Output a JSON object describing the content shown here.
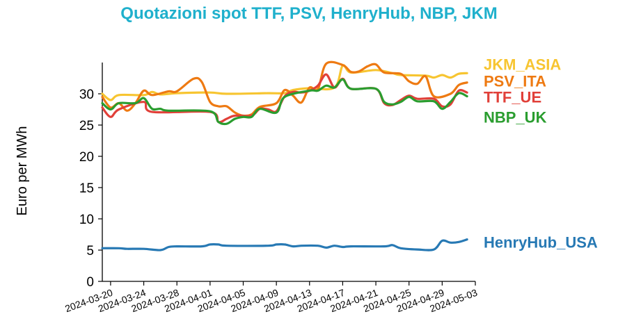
{
  "chart_data": {
    "type": "line",
    "title": "Quotazioni spot TTF, PSV, HenryHub, NBP, JKM",
    "ylabel": "Euro per MWh",
    "xlabel": "",
    "ylim": [
      0,
      35
    ],
    "yticks": [
      0,
      5,
      10,
      15,
      20,
      25,
      30
    ],
    "xlim": [
      "2024-03-19",
      "2024-05-03"
    ],
    "xticks": [
      "2024-03-20",
      "2024-03-24",
      "2024-03-28",
      "2024-04-01",
      "2024-04-05",
      "2024-04-09",
      "2024-04-13",
      "2024-04-17",
      "2024-04-21",
      "2024-04-25",
      "2024-04-29",
      "2024-05-03"
    ],
    "grid": false,
    "legend": "series labels at right end of lines",
    "series": [
      {
        "name": "JKM_ASIA",
        "color": "#f7c531",
        "points": [
          [
            "2024-03-19",
            30.0
          ],
          [
            "2024-03-20",
            29.0
          ],
          [
            "2024-03-21",
            29.8
          ],
          [
            "2024-03-24",
            29.8
          ],
          [
            "2024-03-25",
            30.3
          ],
          [
            "2024-03-26",
            29.9
          ],
          [
            "2024-03-28",
            30.1
          ],
          [
            "2024-04-01",
            30.2
          ],
          [
            "2024-04-03",
            30.0
          ],
          [
            "2024-04-08",
            30.1
          ],
          [
            "2024-04-10",
            30.1
          ],
          [
            "2024-04-11",
            30.6
          ],
          [
            "2024-04-13",
            30.9
          ],
          [
            "2024-04-16",
            31.0
          ],
          [
            "2024-04-17",
            34.5
          ],
          [
            "2024-04-18",
            33.4
          ],
          [
            "2024-04-21",
            33.8
          ],
          [
            "2024-04-23",
            33.3
          ],
          [
            "2024-04-24",
            33.0
          ],
          [
            "2024-04-27",
            32.9
          ],
          [
            "2024-04-28",
            32.6
          ],
          [
            "2024-04-29",
            33.0
          ],
          [
            "2024-04-30",
            32.6
          ],
          [
            "2024-05-01",
            33.2
          ],
          [
            "2024-05-02",
            33.3
          ]
        ]
      },
      {
        "name": "PSV_ITA",
        "color": "#ee7a12",
        "points": [
          [
            "2024-03-19",
            29.5
          ],
          [
            "2024-03-20",
            27.8
          ],
          [
            "2024-03-21",
            28.5
          ],
          [
            "2024-03-22",
            27.3
          ],
          [
            "2024-03-23",
            28.5
          ],
          [
            "2024-03-24",
            30.5
          ],
          [
            "2024-03-25",
            29.8
          ],
          [
            "2024-03-27",
            30.4
          ],
          [
            "2024-03-28",
            30.4
          ],
          [
            "2024-03-30",
            32.4
          ],
          [
            "2024-03-31",
            31.9
          ],
          [
            "2024-04-01",
            28.7
          ],
          [
            "2024-04-02",
            28.0
          ],
          [
            "2024-04-03",
            28.0
          ],
          [
            "2024-04-04",
            27.0
          ],
          [
            "2024-04-05",
            26.5
          ],
          [
            "2024-04-06",
            26.7
          ],
          [
            "2024-04-07",
            27.9
          ],
          [
            "2024-04-09",
            28.5
          ],
          [
            "2024-04-10",
            30.6
          ],
          [
            "2024-04-11",
            29.7
          ],
          [
            "2024-04-12",
            28.6
          ],
          [
            "2024-04-13",
            31.0
          ],
          [
            "2024-04-14",
            30.7
          ],
          [
            "2024-04-15",
            34.8
          ],
          [
            "2024-04-17",
            34.6
          ],
          [
            "2024-04-18",
            33.5
          ],
          [
            "2024-04-19",
            33.6
          ],
          [
            "2024-04-20",
            34.4
          ],
          [
            "2024-04-21",
            34.7
          ],
          [
            "2024-04-22",
            33.4
          ],
          [
            "2024-04-24",
            33.2
          ],
          [
            "2024-04-25",
            32.0
          ],
          [
            "2024-04-26",
            31.6
          ],
          [
            "2024-04-27",
            32.8
          ],
          [
            "2024-04-28",
            29.6
          ],
          [
            "2024-04-30",
            30.0
          ],
          [
            "2024-05-01",
            31.4
          ],
          [
            "2024-05-02",
            31.8
          ]
        ]
      },
      {
        "name": "TTF_UE",
        "color": "#e14039",
        "points": [
          [
            "2024-03-19",
            27.8
          ],
          [
            "2024-03-20",
            26.3
          ],
          [
            "2024-03-21",
            27.5
          ],
          [
            "2024-03-24",
            28.7
          ],
          [
            "2024-03-25",
            27.1
          ],
          [
            "2024-04-01",
            27.1
          ],
          [
            "2024-04-02",
            25.5
          ],
          [
            "2024-04-03",
            26.0
          ],
          [
            "2024-04-04",
            26.5
          ],
          [
            "2024-04-06",
            26.5
          ],
          [
            "2024-04-07",
            27.6
          ],
          [
            "2024-04-08",
            27.5
          ],
          [
            "2024-04-09",
            27.2
          ],
          [
            "2024-04-10",
            29.6
          ],
          [
            "2024-04-11",
            30.3
          ],
          [
            "2024-04-12",
            30.2
          ],
          [
            "2024-04-13",
            30.5
          ],
          [
            "2024-04-14",
            31.3
          ],
          [
            "2024-04-15",
            33.1
          ],
          [
            "2024-04-16",
            31.0
          ],
          [
            "2024-04-17",
            32.4
          ],
          [
            "2024-04-18",
            30.8
          ],
          [
            "2024-04-21",
            30.8
          ],
          [
            "2024-04-22",
            28.5
          ],
          [
            "2024-04-23",
            28.2
          ],
          [
            "2024-04-24",
            29.0
          ],
          [
            "2024-04-25",
            29.7
          ],
          [
            "2024-04-26",
            29.2
          ],
          [
            "2024-04-28",
            29.2
          ],
          [
            "2024-04-29",
            28.0
          ],
          [
            "2024-04-30",
            28.3
          ],
          [
            "2024-05-01",
            30.5
          ],
          [
            "2024-05-02",
            30.2
          ]
        ]
      },
      {
        "name": "NBP_UK",
        "color": "#2a9d2f",
        "points": [
          [
            "2024-03-19",
            28.5
          ],
          [
            "2024-03-20",
            27.5
          ],
          [
            "2024-03-21",
            28.5
          ],
          [
            "2024-03-23",
            28.5
          ],
          [
            "2024-03-24",
            29.3
          ],
          [
            "2024-03-25",
            27.6
          ],
          [
            "2024-03-26",
            27.6
          ],
          [
            "2024-03-27",
            27.3
          ],
          [
            "2024-04-01",
            27.2
          ],
          [
            "2024-04-02",
            25.5
          ],
          [
            "2024-04-03",
            25.2
          ],
          [
            "2024-04-04",
            26.0
          ],
          [
            "2024-04-05",
            26.3
          ],
          [
            "2024-04-06",
            26.3
          ],
          [
            "2024-04-07",
            27.6
          ],
          [
            "2024-04-09",
            27.0
          ],
          [
            "2024-04-10",
            29.5
          ],
          [
            "2024-04-13",
            30.5
          ],
          [
            "2024-04-14",
            30.5
          ],
          [
            "2024-04-15",
            31.3
          ],
          [
            "2024-04-16",
            31.0
          ],
          [
            "2024-04-17",
            32.3
          ],
          [
            "2024-04-18",
            30.8
          ],
          [
            "2024-04-21",
            30.8
          ],
          [
            "2024-04-22",
            28.7
          ],
          [
            "2024-04-23",
            28.3
          ],
          [
            "2024-04-24",
            28.7
          ],
          [
            "2024-04-25",
            29.5
          ],
          [
            "2024-04-26",
            28.8
          ],
          [
            "2024-04-28",
            28.8
          ],
          [
            "2024-04-29",
            27.6
          ],
          [
            "2024-04-30",
            28.7
          ],
          [
            "2024-05-01",
            30.1
          ],
          [
            "2024-05-02",
            29.6
          ]
        ]
      },
      {
        "name": "HenryHub_USA",
        "color": "#2779b4",
        "points": [
          [
            "2024-03-19",
            5.3
          ],
          [
            "2024-03-21",
            5.3
          ],
          [
            "2024-03-22",
            5.2
          ],
          [
            "2024-03-24",
            5.2
          ],
          [
            "2024-03-26",
            5.0
          ],
          [
            "2024-03-27",
            5.5
          ],
          [
            "2024-03-28",
            5.6
          ],
          [
            "2024-03-31",
            5.6
          ],
          [
            "2024-04-01",
            5.9
          ],
          [
            "2024-04-02",
            5.9
          ],
          [
            "2024-04-03",
            5.7
          ],
          [
            "2024-04-08",
            5.7
          ],
          [
            "2024-04-09",
            5.9
          ],
          [
            "2024-04-10",
            5.9
          ],
          [
            "2024-04-11",
            5.6
          ],
          [
            "2024-04-12",
            5.7
          ],
          [
            "2024-04-14",
            5.7
          ],
          [
            "2024-04-15",
            5.4
          ],
          [
            "2024-04-16",
            5.7
          ],
          [
            "2024-04-17",
            5.5
          ],
          [
            "2024-04-18",
            5.6
          ],
          [
            "2024-04-22",
            5.6
          ],
          [
            "2024-04-23",
            5.8
          ],
          [
            "2024-04-24",
            5.3
          ],
          [
            "2024-04-26",
            5.1
          ],
          [
            "2024-04-28",
            5.1
          ],
          [
            "2024-04-29",
            6.5
          ],
          [
            "2024-04-30",
            6.2
          ],
          [
            "2024-05-01",
            6.3
          ],
          [
            "2024-05-02",
            6.7
          ]
        ]
      }
    ]
  }
}
